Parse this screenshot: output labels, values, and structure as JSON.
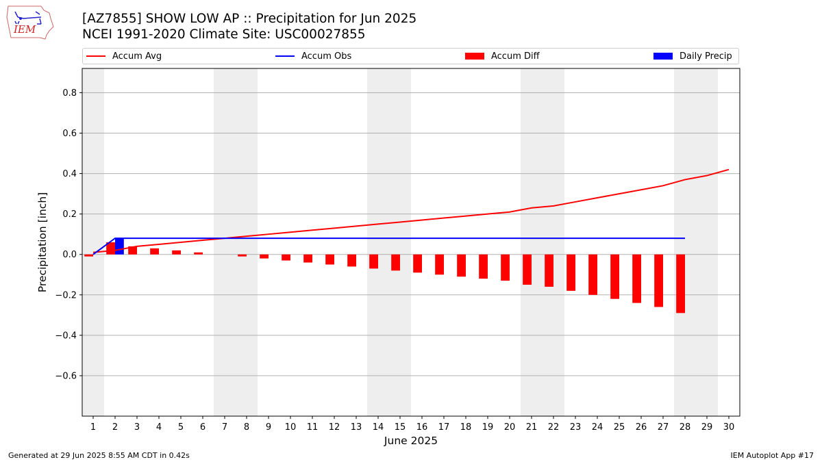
{
  "header": {
    "title_line1": "[AZ7855] SHOW LOW AP :: Precipitation for Jun 2025",
    "title_line2": "NCEI 1991-2020 Climate Site: USC00027855",
    "logo_text": "IEM"
  },
  "legend": {
    "accum_avg": "Accum Avg",
    "accum_obs": "Accum Obs",
    "accum_diff": "Accum Diff",
    "daily_precip": "Daily Precip"
  },
  "footer": {
    "generated": "Generated at 29 Jun 2025 8:55 AM CDT in 0.42s",
    "app": "IEM Autoplot App #17"
  },
  "colors": {
    "accum_avg": "#ff0000",
    "accum_obs": "#0000ff",
    "accum_diff": "#ff0000",
    "daily_precip": "#0000ff",
    "weekend_shade": "#eeeeee",
    "grid": "#b0b0b0"
  },
  "chart_data": {
    "type": "bar",
    "xlabel": "June 2025",
    "ylabel": "Precipitation [inch]",
    "xlim": [
      0.5,
      30.5
    ],
    "ylim": [
      -0.8,
      0.92
    ],
    "yticks": [
      -0.6,
      -0.4,
      -0.2,
      0.0,
      0.2,
      0.4,
      0.6,
      0.8
    ],
    "ytick_labels": [
      "−0.6",
      "−0.4",
      "−0.2",
      "0.0",
      "0.2",
      "0.4",
      "0.6",
      "0.8"
    ],
    "days": [
      1,
      2,
      3,
      4,
      5,
      6,
      7,
      8,
      9,
      10,
      11,
      12,
      13,
      14,
      15,
      16,
      17,
      18,
      19,
      20,
      21,
      22,
      23,
      24,
      25,
      26,
      27,
      28,
      29,
      30
    ],
    "weekend_spans": [
      [
        0.5,
        1.5
      ],
      [
        6.5,
        8.5
      ],
      [
        13.5,
        15.5
      ],
      [
        20.5,
        22.5
      ],
      [
        27.5,
        29.5
      ]
    ],
    "grid": true,
    "legend_position": "top",
    "series": [
      {
        "name": "Accum Avg",
        "kind": "line",
        "x": [
          1,
          2,
          3,
          4,
          5,
          6,
          7,
          8,
          9,
          10,
          11,
          12,
          13,
          14,
          15,
          16,
          17,
          18,
          19,
          20,
          21,
          22,
          23,
          24,
          25,
          26,
          27,
          28,
          29,
          30
        ],
        "values": [
          0.01,
          0.02,
          0.04,
          0.05,
          0.06,
          0.07,
          0.08,
          0.09,
          0.1,
          0.11,
          0.12,
          0.13,
          0.14,
          0.15,
          0.16,
          0.17,
          0.18,
          0.19,
          0.2,
          0.21,
          0.23,
          0.24,
          0.26,
          0.28,
          0.3,
          0.32,
          0.34,
          0.37,
          0.39,
          0.42
        ]
      },
      {
        "name": "Accum Obs",
        "kind": "line",
        "x": [
          1,
          2,
          3,
          4,
          5,
          6,
          7,
          8,
          9,
          10,
          11,
          12,
          13,
          14,
          15,
          16,
          17,
          18,
          19,
          20,
          21,
          22,
          23,
          24,
          25,
          26,
          27,
          28
        ],
        "values": [
          0.0,
          0.08,
          0.08,
          0.08,
          0.08,
          0.08,
          0.08,
          0.08,
          0.08,
          0.08,
          0.08,
          0.08,
          0.08,
          0.08,
          0.08,
          0.08,
          0.08,
          0.08,
          0.08,
          0.08,
          0.08,
          0.08,
          0.08,
          0.08,
          0.08,
          0.08,
          0.08,
          0.08
        ]
      },
      {
        "name": "Accum Diff",
        "kind": "bar",
        "x": [
          1,
          2,
          3,
          4,
          5,
          6,
          7,
          8,
          9,
          10,
          11,
          12,
          13,
          14,
          15,
          16,
          17,
          18,
          19,
          20,
          21,
          22,
          23,
          24,
          25,
          26,
          27,
          28
        ],
        "values": [
          -0.01,
          0.06,
          0.04,
          0.03,
          0.02,
          0.01,
          0.0,
          -0.01,
          -0.02,
          -0.03,
          -0.04,
          -0.05,
          -0.06,
          -0.07,
          -0.08,
          -0.09,
          -0.1,
          -0.11,
          -0.12,
          -0.13,
          -0.15,
          -0.16,
          -0.18,
          -0.2,
          -0.22,
          -0.24,
          -0.26,
          -0.29
        ]
      },
      {
        "name": "Daily Precip",
        "kind": "bar",
        "x": [
          2
        ],
        "values": [
          0.08
        ]
      }
    ]
  }
}
